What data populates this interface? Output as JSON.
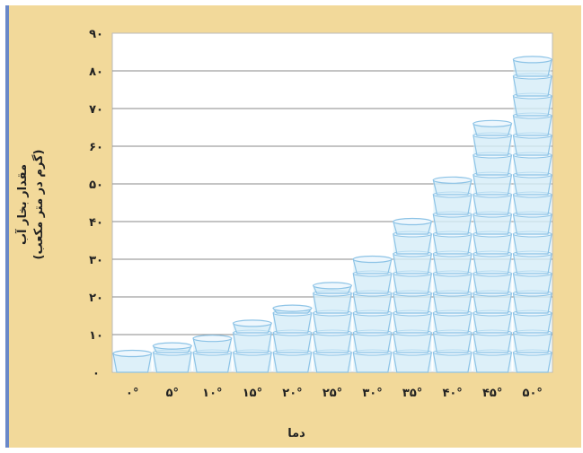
{
  "chart_data": {
    "type": "bar",
    "xlabel": "دما",
    "ylabel": "مقدار بخار آب",
    "ylabel_unit": "(گرم در متر مکعب)",
    "categories": [
      "۰°",
      "۵°",
      "۱۰°",
      "۱۵°",
      "۲۰°",
      "۲۵°",
      "۳۰°",
      "۳۵°",
      "۴۰°",
      "۴۵°",
      "۵۰°"
    ],
    "values": [
      5,
      7,
      9,
      13,
      17,
      23,
      30,
      40,
      51,
      66,
      83
    ],
    "ylim": [
      0,
      90
    ],
    "y_ticks": [
      {
        "value": 0,
        "label": "۰"
      },
      {
        "value": 10,
        "label": "۱۰"
      },
      {
        "value": 20,
        "label": "۲۰"
      },
      {
        "value": 30,
        "label": "۳۰"
      },
      {
        "value": 40,
        "label": "۴۰"
      },
      {
        "value": 50,
        "label": "۵۰"
      },
      {
        "value": 60,
        "label": "۶۰"
      },
      {
        "value": 70,
        "label": "۷۰"
      },
      {
        "value": 80,
        "label": "۸۰"
      },
      {
        "value": 90,
        "label": "۹۰"
      }
    ],
    "grid": true,
    "bar_style": "stacked water glasses",
    "colors": {
      "background": "#f2d99a",
      "plot_area": "#ffffff",
      "gridline": "#8a8a8a",
      "glass_fill": "#d6ecf8",
      "glass_stroke": "#8cc3e6"
    }
  }
}
